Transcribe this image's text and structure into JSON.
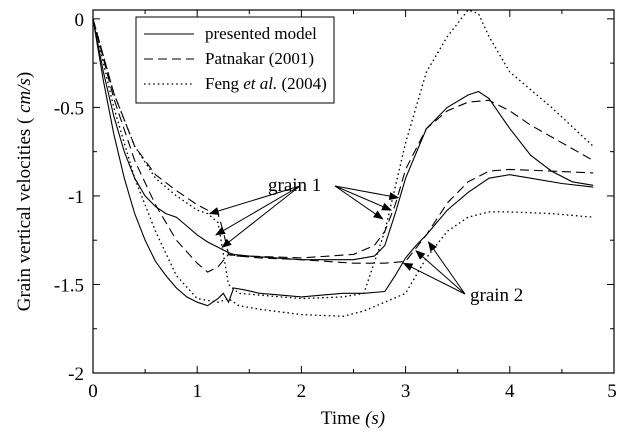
{
  "chart_data": {
    "type": "line",
    "xlabel_prefix": "Time ",
    "xlabel_unit": "(s)",
    "ylabel_prefix": "Grain vertical velocities ( ",
    "ylabel_unit": "cm/s",
    "ylabel_suffix": ")",
    "xlim": [
      0,
      5
    ],
    "ylim": [
      -2,
      0.05
    ],
    "x_ticks": [
      0,
      1,
      2,
      3,
      4,
      5
    ],
    "x_tick_labels": [
      "0",
      "1",
      "2",
      "3",
      "4",
      "5"
    ],
    "y_ticks": [
      0,
      -0.5,
      -1,
      -1.5,
      -2
    ],
    "y_tick_labels": [
      "0",
      "-0.5",
      "-1",
      "-1.5",
      "-2"
    ],
    "legend_position": "top-left",
    "legend": [
      {
        "label_parts": [
          "presented model"
        ],
        "style": "solid"
      },
      {
        "label_parts": [
          "Patnakar (2001)"
        ],
        "style": "dashed"
      },
      {
        "label_parts": [
          "Feng ",
          "et al.",
          " (2004)"
        ],
        "italic_index": 1,
        "style": "dotted"
      }
    ],
    "annotations": [
      {
        "text": "grain 1",
        "arrow_targets": [
          [
            1.12,
            -1.1
          ],
          [
            1.18,
            -1.22
          ],
          [
            1.24,
            -1.29
          ],
          [
            2.93,
            -1.01
          ],
          [
            2.86,
            -1.08
          ],
          [
            2.78,
            -1.13
          ]
        ]
      },
      {
        "text": "grain 2",
        "arrow_targets": [
          [
            2.98,
            -1.38
          ],
          [
            3.1,
            -1.31
          ],
          [
            3.22,
            -1.26
          ]
        ]
      }
    ],
    "series": [
      {
        "group": "grain 1",
        "style": "solid",
        "points": [
          [
            0,
            0
          ],
          [
            0.1,
            -0.3
          ],
          [
            0.2,
            -0.55
          ],
          [
            0.3,
            -0.75
          ],
          [
            0.4,
            -0.9
          ],
          [
            0.5,
            -1.0
          ],
          [
            0.6,
            -1.06
          ],
          [
            0.7,
            -1.1
          ],
          [
            0.8,
            -1.12
          ],
          [
            0.9,
            -1.17
          ],
          [
            1.0,
            -1.22
          ],
          [
            1.1,
            -1.26
          ],
          [
            1.2,
            -1.29
          ],
          [
            1.3,
            -1.32
          ],
          [
            1.35,
            -1.33
          ],
          [
            1.5,
            -1.34
          ],
          [
            2.0,
            -1.36
          ],
          [
            2.5,
            -1.36
          ],
          [
            2.7,
            -1.34
          ],
          [
            2.8,
            -1.28
          ],
          [
            2.9,
            -1.1
          ],
          [
            3.0,
            -0.9
          ],
          [
            3.2,
            -0.62
          ],
          [
            3.4,
            -0.5
          ],
          [
            3.6,
            -0.43
          ],
          [
            3.7,
            -0.41
          ],
          [
            3.8,
            -0.45
          ],
          [
            4.0,
            -0.62
          ],
          [
            4.2,
            -0.77
          ],
          [
            4.4,
            -0.86
          ],
          [
            4.6,
            -0.92
          ],
          [
            4.8,
            -0.94
          ]
        ]
      },
      {
        "group": "grain 2",
        "style": "solid",
        "points": [
          [
            0,
            0
          ],
          [
            0.1,
            -0.35
          ],
          [
            0.2,
            -0.65
          ],
          [
            0.3,
            -0.9
          ],
          [
            0.4,
            -1.1
          ],
          [
            0.5,
            -1.25
          ],
          [
            0.6,
            -1.37
          ],
          [
            0.7,
            -1.45
          ],
          [
            0.8,
            -1.52
          ],
          [
            0.9,
            -1.57
          ],
          [
            1.0,
            -1.6
          ],
          [
            1.1,
            -1.62
          ],
          [
            1.2,
            -1.58
          ],
          [
            1.25,
            -1.55
          ],
          [
            1.3,
            -1.6
          ],
          [
            1.35,
            -1.52
          ],
          [
            1.45,
            -1.53
          ],
          [
            1.6,
            -1.55
          ],
          [
            1.8,
            -1.56
          ],
          [
            2.0,
            -1.57
          ],
          [
            2.2,
            -1.56
          ],
          [
            2.4,
            -1.55
          ],
          [
            2.6,
            -1.55
          ],
          [
            2.8,
            -1.54
          ],
          [
            2.9,
            -1.45
          ],
          [
            3.0,
            -1.35
          ],
          [
            3.1,
            -1.28
          ],
          [
            3.2,
            -1.22
          ],
          [
            3.4,
            -1.08
          ],
          [
            3.6,
            -0.98
          ],
          [
            3.8,
            -0.9
          ],
          [
            4.0,
            -0.88
          ],
          [
            4.2,
            -0.9
          ],
          [
            4.5,
            -0.93
          ],
          [
            4.8,
            -0.95
          ]
        ]
      },
      {
        "group": "grain 1",
        "style": "dashed",
        "points": [
          [
            0,
            0
          ],
          [
            0.2,
            -0.42
          ],
          [
            0.4,
            -0.72
          ],
          [
            0.6,
            -0.88
          ],
          [
            0.8,
            -0.97
          ],
          [
            1.0,
            -1.05
          ],
          [
            1.1,
            -1.08
          ],
          [
            1.2,
            -1.1
          ],
          [
            1.25,
            -1.2
          ],
          [
            1.3,
            -1.33
          ],
          [
            1.35,
            -1.34
          ],
          [
            1.5,
            -1.34
          ],
          [
            2.0,
            -1.35
          ],
          [
            2.5,
            -1.33
          ],
          [
            2.7,
            -1.28
          ],
          [
            2.8,
            -1.2
          ],
          [
            2.9,
            -1.05
          ],
          [
            3.0,
            -0.85
          ],
          [
            3.2,
            -0.62
          ],
          [
            3.4,
            -0.52
          ],
          [
            3.6,
            -0.47
          ],
          [
            3.8,
            -0.46
          ],
          [
            4.0,
            -0.52
          ],
          [
            4.2,
            -0.6
          ],
          [
            4.5,
            -0.7
          ],
          [
            4.8,
            -0.8
          ]
        ]
      },
      {
        "group": "grain 2",
        "style": "dashed",
        "points": [
          [
            0,
            0
          ],
          [
            0.2,
            -0.45
          ],
          [
            0.4,
            -0.8
          ],
          [
            0.6,
            -1.05
          ],
          [
            0.8,
            -1.25
          ],
          [
            1.0,
            -1.38
          ],
          [
            1.1,
            -1.43
          ],
          [
            1.2,
            -1.4
          ],
          [
            1.3,
            -1.33
          ],
          [
            1.4,
            -1.34
          ],
          [
            1.6,
            -1.35
          ],
          [
            2.0,
            -1.36
          ],
          [
            2.5,
            -1.38
          ],
          [
            2.8,
            -1.38
          ],
          [
            3.0,
            -1.37
          ],
          [
            3.2,
            -1.22
          ],
          [
            3.4,
            -1.04
          ],
          [
            3.6,
            -0.92
          ],
          [
            3.8,
            -0.86
          ],
          [
            4.0,
            -0.85
          ],
          [
            4.4,
            -0.86
          ],
          [
            4.8,
            -0.87
          ]
        ]
      },
      {
        "group": "grain 1",
        "style": "dotted",
        "points": [
          [
            0,
            0
          ],
          [
            0.2,
            -0.42
          ],
          [
            0.4,
            -0.72
          ],
          [
            0.6,
            -0.9
          ],
          [
            0.8,
            -1.0
          ],
          [
            1.0,
            -1.08
          ],
          [
            1.1,
            -1.1
          ],
          [
            1.2,
            -1.15
          ],
          [
            1.3,
            -1.5
          ],
          [
            1.4,
            -1.55
          ],
          [
            1.6,
            -1.56
          ],
          [
            2.0,
            -1.58
          ],
          [
            2.4,
            -1.57
          ],
          [
            2.6,
            -1.55
          ],
          [
            2.8,
            -1.2
          ],
          [
            3.0,
            -0.7
          ],
          [
            3.2,
            -0.3
          ],
          [
            3.4,
            -0.1
          ],
          [
            3.6,
            0.05
          ],
          [
            3.7,
            0.03
          ],
          [
            3.8,
            -0.1
          ],
          [
            4.0,
            -0.3
          ],
          [
            4.4,
            -0.5
          ],
          [
            4.8,
            -0.72
          ]
        ]
      },
      {
        "group": "grain 2",
        "style": "dotted",
        "points": [
          [
            0,
            0
          ],
          [
            0.2,
            -0.5
          ],
          [
            0.4,
            -0.9
          ],
          [
            0.6,
            -1.2
          ],
          [
            0.8,
            -1.45
          ],
          [
            1.0,
            -1.58
          ],
          [
            1.2,
            -1.6
          ],
          [
            1.3,
            -1.58
          ],
          [
            1.4,
            -1.62
          ],
          [
            1.6,
            -1.64
          ],
          [
            2.0,
            -1.67
          ],
          [
            2.4,
            -1.68
          ],
          [
            2.6,
            -1.65
          ],
          [
            2.8,
            -1.6
          ],
          [
            3.0,
            -1.55
          ],
          [
            3.1,
            -1.45
          ],
          [
            3.2,
            -1.35
          ],
          [
            3.4,
            -1.2
          ],
          [
            3.6,
            -1.12
          ],
          [
            3.8,
            -1.09
          ],
          [
            4.0,
            -1.09
          ],
          [
            4.4,
            -1.1
          ],
          [
            4.8,
            -1.12
          ]
        ]
      }
    ]
  }
}
